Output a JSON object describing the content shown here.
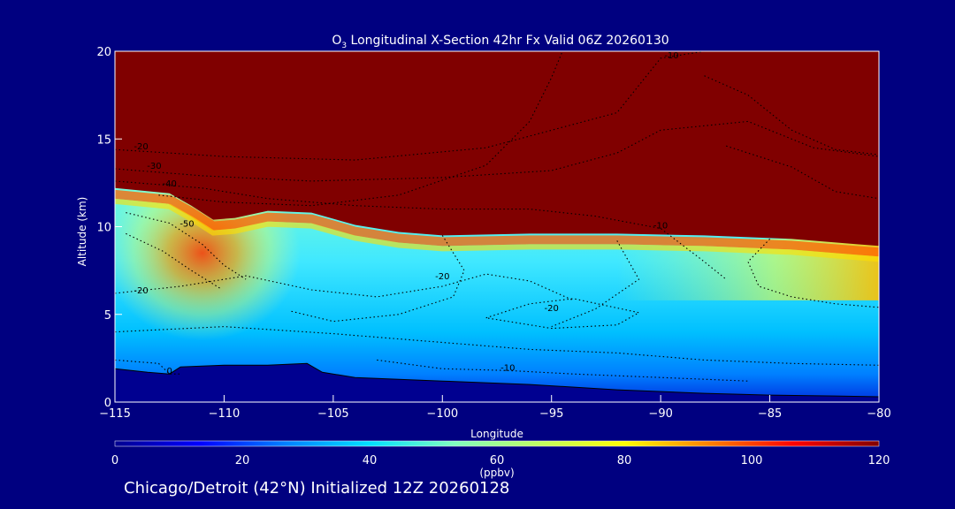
{
  "chart_data": {
    "type": "heatmap",
    "title_species": "O",
    "title_sub": "3",
    "title_rest": " Longitudinal X-Section 42hr  Fx Valid 06Z 20260130",
    "xlabel": "Longitude",
    "ylabel": "Altitude (km)",
    "xlim": [
      -115,
      -80
    ],
    "ylim": [
      0,
      20
    ],
    "xticks": [
      -115,
      -110,
      -105,
      -100,
      -95,
      -90,
      -85,
      -80
    ],
    "xtick_labels": [
      "−115",
      "−110",
      "−105",
      "−100",
      "−95",
      "−90",
      "−85",
      "−80"
    ],
    "yticks": [
      0,
      5,
      10,
      15,
      20
    ],
    "ytick_labels": [
      "0",
      "5",
      "10",
      "15",
      "20"
    ],
    "colorbar": {
      "min": 0,
      "max": 120,
      "ticks": [
        0,
        20,
        40,
        60,
        80,
        100,
        120
      ],
      "tick_labels": [
        "0",
        "20",
        "40",
        "60",
        "80",
        "100",
        "120"
      ],
      "unit": "(ppbv)",
      "stops": [
        "#000090",
        "#0000ff",
        "#0080ff",
        "#00e0ff",
        "#80ffc0",
        "#c0ff60",
        "#ffff00",
        "#ff8000",
        "#ff0000",
        "#800000"
      ]
    },
    "colors": {
      "background": "#000080",
      "high": "#800000",
      "terrain": "#000090"
    },
    "tropopause": {
      "lon": [
        -115,
        -112.5,
        -111.5,
        -110.5,
        -109.5,
        -108,
        -106,
        -104,
        -102,
        -100,
        -96,
        -92,
        -88,
        -84,
        -81,
        -80
      ],
      "alt": [
        12.2,
        11.9,
        11.2,
        10.4,
        10.5,
        10.9,
        10.8,
        10.1,
        9.7,
        9.5,
        9.6,
        9.6,
        9.5,
        9.3,
        9.0,
        8.9
      ]
    },
    "terrain": {
      "lon": [
        -115,
        -113.5,
        -112.5,
        -112,
        -110,
        -108,
        -106.2,
        -105.5,
        -104,
        -100,
        -96,
        -92,
        -88,
        -85,
        -82,
        -80
      ],
      "alt": [
        1.9,
        1.7,
        1.6,
        2.0,
        2.1,
        2.1,
        2.2,
        1.7,
        1.4,
        1.2,
        1.0,
        0.7,
        0.5,
        0.4,
        0.35,
        0.3
      ]
    },
    "stratospheric_intrusion": {
      "lon_center": -111,
      "alt_center": 8.5,
      "value_ppbv": 90
    },
    "contour_labels": [
      {
        "text": "-10",
        "lon": -89.5,
        "alt": 19.6
      },
      {
        "text": "-20",
        "lon": -113.8,
        "alt": 14.4
      },
      {
        "text": "-30",
        "lon": -113.2,
        "alt": 13.3
      },
      {
        "text": "-40",
        "lon": -112.5,
        "alt": 12.3
      },
      {
        "text": "-50",
        "lon": -111.7,
        "alt": 10.0
      },
      {
        "text": "-20",
        "lon": -113.8,
        "alt": 6.2
      },
      {
        "text": "-10",
        "lon": -90.0,
        "alt": 9.9
      },
      {
        "text": "-20",
        "lon": -100.0,
        "alt": 7.0
      },
      {
        "text": "-20",
        "lon": -95.0,
        "alt": 5.2
      },
      {
        "text": "-10",
        "lon": -97.0,
        "alt": 1.8
      },
      {
        "text": "0",
        "lon": -112.5,
        "alt": 1.6
      }
    ]
  },
  "footer": "Chicago/Detroit (42°N) Initialized 12Z 20260128"
}
